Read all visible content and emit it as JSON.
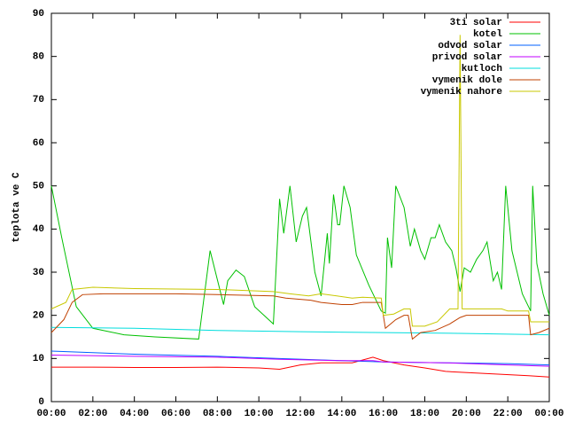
{
  "chart_data": {
    "type": "line",
    "ylabel": "teplota ve C",
    "xlim": [
      0,
      24
    ],
    "xticks": [
      {
        "value": 0,
        "label": "00:00"
      },
      {
        "value": 2,
        "label": "02:00"
      },
      {
        "value": 4,
        "label": "04:00"
      },
      {
        "value": 6,
        "label": "06:00"
      },
      {
        "value": 8,
        "label": "08:00"
      },
      {
        "value": 10,
        "label": "10:00"
      },
      {
        "value": 12,
        "label": "12:00"
      },
      {
        "value": 14,
        "label": "14:00"
      },
      {
        "value": 16,
        "label": "16:00"
      },
      {
        "value": 18,
        "label": "18:00"
      },
      {
        "value": 20,
        "label": "20:00"
      },
      {
        "value": 22,
        "label": "22:00"
      },
      {
        "value": 24,
        "label": "00:00"
      }
    ],
    "ylim": [
      0,
      90
    ],
    "yticks": [
      0,
      10,
      20,
      30,
      40,
      50,
      60,
      70,
      80,
      90
    ],
    "grid": false,
    "legend": "top-right",
    "series": [
      {
        "name": "3ti solar",
        "color": "#ff0000",
        "x": [
          0,
          2,
          4,
          6,
          8,
          10,
          11,
          12,
          13,
          14.5,
          15.5,
          16,
          17,
          18,
          19,
          21,
          23,
          24
        ],
        "values": [
          8,
          8,
          7.9,
          7.9,
          8,
          7.8,
          7.5,
          8.5,
          9,
          9,
          10.3,
          9.5,
          8.5,
          7.8,
          7,
          6.5,
          6,
          5.7
        ]
      },
      {
        "name": "kotel",
        "color": "#00c000",
        "x": [
          0,
          0.5,
          1.2,
          2,
          3.5,
          5,
          7.1,
          7.65,
          8.3,
          8.5,
          8.9,
          9.3,
          9.8,
          10.7,
          11.0,
          11.2,
          11.5,
          11.8,
          12.1,
          12.3,
          12.7,
          13.0,
          13.3,
          13.4,
          13.6,
          13.8,
          13.9,
          14.1,
          14.4,
          14.7,
          15.3,
          15.9,
          16.1,
          16.2,
          16.4,
          16.6,
          17.0,
          17.3,
          17.5,
          17.8,
          18.0,
          18.3,
          18.5,
          18.7,
          19.0,
          19.3,
          19.5,
          19.7,
          19.9,
          20.2,
          20.5,
          20.8,
          21.0,
          21.3,
          21.5,
          21.7,
          21.9,
          22.2,
          22.7,
          23.1,
          23.2,
          23.4,
          23.7,
          24
        ],
        "values": [
          50,
          38,
          22,
          17,
          15.5,
          15,
          14.5,
          35,
          22.5,
          28,
          30.5,
          29,
          22,
          18,
          47,
          39,
          50,
          37,
          43,
          45,
          30,
          24.5,
          39,
          32,
          48,
          41,
          41,
          50,
          45,
          34,
          27,
          21,
          20.5,
          38,
          31,
          50,
          45,
          36,
          40,
          35,
          33,
          38,
          38,
          41,
          37,
          35,
          31,
          25.5,
          31,
          30,
          33,
          35,
          37,
          28,
          30,
          26,
          50,
          35,
          25,
          21,
          50,
          32,
          25,
          20
        ]
      },
      {
        "name": "odvod solar",
        "color": "#0060ff",
        "x": [
          0,
          4,
          8,
          11,
          14,
          16,
          19,
          22,
          24
        ],
        "values": [
          11.7,
          11,
          10.5,
          10,
          9.5,
          9.2,
          9,
          8.8,
          8.5
        ]
      },
      {
        "name": "privod solar",
        "color": "#c000ff",
        "x": [
          0,
          4,
          8,
          11,
          14,
          15.5,
          16,
          19,
          22,
          24
        ],
        "values": [
          10.8,
          10.5,
          10.3,
          9.8,
          9.5,
          9.5,
          9.2,
          9,
          8.5,
          8.2
        ]
      },
      {
        "name": "kutloch",
        "color": "#00dddd",
        "x": [
          0,
          4,
          8,
          12,
          16,
          20,
          24
        ],
        "values": [
          17.2,
          17,
          16.5,
          16.2,
          16,
          15.8,
          15.5
        ]
      },
      {
        "name": "vymenik dole",
        "color": "#c04000",
        "x": [
          0,
          0.6,
          1,
          1.5,
          2.5,
          6,
          8,
          10.7,
          11.3,
          12.5,
          13,
          14,
          14.5,
          15,
          15.9,
          16.1,
          16.6,
          17,
          17.2,
          17.4,
          17.8,
          18.5,
          19.2,
          19.7,
          20,
          23,
          23.1,
          23.5,
          24
        ],
        "values": [
          16,
          19,
          23,
          24.8,
          25,
          25,
          24.8,
          24.5,
          24,
          23.5,
          23,
          22.5,
          22.5,
          23,
          23,
          17,
          19,
          20,
          20,
          14.5,
          16,
          16.5,
          18,
          19.5,
          20,
          20,
          15.5,
          16,
          17
        ]
      },
      {
        "name": "vymenik nahore",
        "color": "#c8c800",
        "x": [
          0,
          0.7,
          1,
          2,
          4,
          8,
          10.7,
          11.5,
          12.4,
          13,
          14.5,
          15,
          15.9,
          16,
          16.5,
          17,
          17.3,
          17.4,
          18,
          18.6,
          19.2,
          19.6,
          19.7,
          19.8,
          21.7,
          22,
          23,
          23.1,
          24
        ],
        "values": [
          21.5,
          23,
          26,
          26.5,
          26.2,
          26,
          25.5,
          25,
          24.5,
          25,
          24,
          24.2,
          24,
          20,
          20.3,
          21.5,
          21.5,
          17.5,
          17.5,
          18.5,
          21.5,
          21.5,
          85,
          21.5,
          21.5,
          21,
          21,
          18.5,
          18.5
        ]
      }
    ]
  }
}
